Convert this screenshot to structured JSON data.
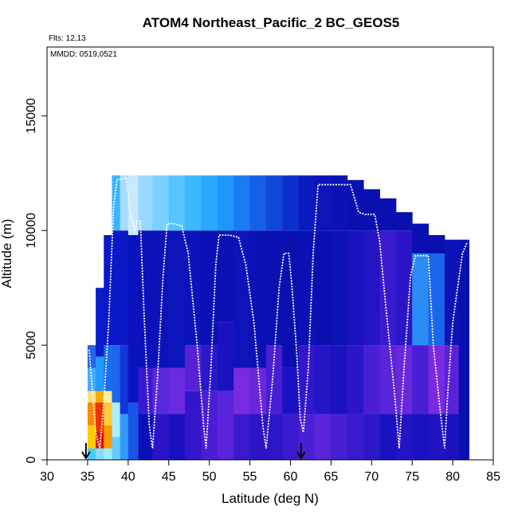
{
  "chart_data": {
    "type": "heatmap",
    "title": "ATOM4 Northeast_Pacific_2 BC_GEOS5",
    "annotations": {
      "flights": "Flts: 12,13",
      "dates": "MMDD: 0519,0521"
    },
    "xlabel": "Latitude (deg N)",
    "ylabel": "Altitude (m)",
    "xlim": [
      30,
      85
    ],
    "ylim": [
      0,
      18000
    ],
    "xticks": [
      30,
      35,
      40,
      45,
      50,
      55,
      60,
      65,
      70,
      75,
      80,
      85
    ],
    "yticks": [
      0,
      5000,
      10000,
      15000
    ],
    "colors": {
      "low": "#0000b4",
      "mid": "#22aaff",
      "violet": "#7a2ae0",
      "high": "#e00000"
    },
    "heatmap_columns": [
      {
        "lat": 35.5,
        "top": 5000,
        "cells": [
          [
            0,
            500,
            "#44ccff"
          ],
          [
            500,
            1500,
            "#ffcc00"
          ],
          [
            1500,
            2500,
            "#ff8800"
          ],
          [
            2500,
            3000,
            "#ffe080"
          ],
          [
            3000,
            4000,
            "#44aaff"
          ],
          [
            4000,
            5000,
            "#2266ee"
          ]
        ]
      },
      {
        "lat": 36.5,
        "top": 7500,
        "cells": [
          [
            0,
            500,
            "#88ddff"
          ],
          [
            500,
            1200,
            "#dd1100"
          ],
          [
            1200,
            2500,
            "#ee3300"
          ],
          [
            2500,
            3000,
            "#ffaa00"
          ],
          [
            3000,
            4500,
            "#2299ff"
          ],
          [
            4500,
            7500,
            "#0a1dcc"
          ]
        ]
      },
      {
        "lat": 37.5,
        "top": 9800,
        "cells": [
          [
            0,
            500,
            "#99eeff"
          ],
          [
            500,
            1500,
            "#ff9900"
          ],
          [
            1500,
            2500,
            "#ffcc33"
          ],
          [
            2500,
            3000,
            "#ffee99"
          ],
          [
            3000,
            5000,
            "#1b6ef0"
          ],
          [
            5000,
            9800,
            "#0a18c8"
          ]
        ]
      },
      {
        "lat": 38.5,
        "top": 12400,
        "cells": [
          [
            0,
            1000,
            "#66ccff"
          ],
          [
            1000,
            2500,
            "#aaeeff"
          ],
          [
            2500,
            5000,
            "#1a66ee"
          ],
          [
            5000,
            10000,
            "#0a1ac8"
          ],
          [
            10000,
            12400,
            "#3bb4ff"
          ]
        ]
      },
      {
        "lat": 39.5,
        "top": 12400,
        "cells": [
          [
            0,
            2000,
            "#3399ff"
          ],
          [
            2000,
            5000,
            "#1236d8"
          ],
          [
            5000,
            10000,
            "#0b1ac4"
          ],
          [
            10000,
            12400,
            "#a8dcff"
          ]
        ]
      },
      {
        "lat": 40.5,
        "top": 12400,
        "cells": [
          [
            0,
            2500,
            "#1a55e6"
          ],
          [
            2500,
            9800,
            "#0a14be"
          ],
          [
            9800,
            12400,
            "#c8eaff"
          ]
        ]
      },
      {
        "lat": 42.0,
        "top": 12400,
        "cells": [
          [
            0,
            2000,
            "#0a10b8"
          ],
          [
            2000,
            4000,
            "#3a1ad0"
          ],
          [
            4000,
            10000,
            "#0a12b8"
          ],
          [
            10000,
            12400,
            "#9ad8ff"
          ]
        ]
      },
      {
        "lat": 44.0,
        "top": 12400,
        "cells": [
          [
            0,
            2000,
            "#2a14c8"
          ],
          [
            2000,
            4000,
            "#5a28dc"
          ],
          [
            4000,
            10000,
            "#0a12b8"
          ],
          [
            10000,
            12400,
            "#7cd0ff"
          ]
        ]
      },
      {
        "lat": 46.0,
        "top": 12400,
        "cells": [
          [
            0,
            2000,
            "#1a10c0"
          ],
          [
            2000,
            4000,
            "#6a2ae0"
          ],
          [
            4000,
            10000,
            "#0c14bc"
          ],
          [
            10000,
            12400,
            "#55c4ff"
          ]
        ]
      },
      {
        "lat": 48.0,
        "top": 12400,
        "cells": [
          [
            0,
            3000,
            "#3316cc"
          ],
          [
            3000,
            5000,
            "#5522d6"
          ],
          [
            5000,
            10000,
            "#0a14bb"
          ],
          [
            10000,
            12400,
            "#3cb8ff"
          ]
        ]
      },
      {
        "lat": 50.0,
        "top": 12400,
        "cells": [
          [
            0,
            3000,
            "#4a1ed4"
          ],
          [
            3000,
            5000,
            "#2a18c8"
          ],
          [
            5000,
            10000,
            "#0a12b6"
          ],
          [
            10000,
            12400,
            "#2aa8ff"
          ]
        ]
      },
      {
        "lat": 52.0,
        "top": 12400,
        "cells": [
          [
            0,
            3000,
            "#5a24da"
          ],
          [
            3000,
            6000,
            "#1a12c0"
          ],
          [
            6000,
            10000,
            "#0a12b4"
          ],
          [
            10000,
            12400,
            "#1f96f8"
          ]
        ]
      },
      {
        "lat": 54.0,
        "top": 12400,
        "cells": [
          [
            0,
            2000,
            "#3a1acc"
          ],
          [
            2000,
            4000,
            "#7a2ae0"
          ],
          [
            4000,
            10000,
            "#0c14ba"
          ],
          [
            10000,
            12400,
            "#1a7cf0"
          ]
        ]
      },
      {
        "lat": 56.0,
        "top": 12400,
        "cells": [
          [
            0,
            2000,
            "#2a16c6"
          ],
          [
            2000,
            4000,
            "#6a26dc"
          ],
          [
            4000,
            10000,
            "#0a12b4"
          ],
          [
            10000,
            12400,
            "#1460e6"
          ]
        ]
      },
      {
        "lat": 58.0,
        "top": 12400,
        "cells": [
          [
            0,
            2000,
            "#2c16c8"
          ],
          [
            2000,
            5000,
            "#4a1ed2"
          ],
          [
            5000,
            10000,
            "#0a10b2"
          ],
          [
            10000,
            12400,
            "#1048da"
          ]
        ]
      },
      {
        "lat": 60.0,
        "top": 12400,
        "cells": [
          [
            0,
            2000,
            "#3a1ace"
          ],
          [
            2000,
            4000,
            "#1a12c2"
          ],
          [
            4000,
            10000,
            "#0a10b0"
          ],
          [
            10000,
            12400,
            "#0c30cc"
          ]
        ]
      },
      {
        "lat": 62.0,
        "top": 12400,
        "cells": [
          [
            0,
            2000,
            "#4a20d4"
          ],
          [
            2000,
            5000,
            "#3218cc"
          ],
          [
            5000,
            10000,
            "#0a12b6"
          ],
          [
            10000,
            12400,
            "#0a1cc0"
          ]
        ]
      },
      {
        "lat": 64.0,
        "top": 12400,
        "cells": [
          [
            0,
            2000,
            "#5a24d8"
          ],
          [
            2000,
            5000,
            "#2416c6"
          ],
          [
            5000,
            10000,
            "#0a10b0"
          ],
          [
            10000,
            12400,
            "#0a16ba"
          ]
        ]
      },
      {
        "lat": 66.0,
        "top": 12400,
        "cells": [
          [
            0,
            2000,
            "#4820d2"
          ],
          [
            2000,
            5000,
            "#1c12c0"
          ],
          [
            5000,
            10000,
            "#0c12b4"
          ],
          [
            10000,
            12400,
            "#0a12b4"
          ]
        ]
      },
      {
        "lat": 68.0,
        "top": 12200,
        "cells": [
          [
            0,
            2000,
            "#3a1ace"
          ],
          [
            2000,
            5000,
            "#2a16c8"
          ],
          [
            5000,
            10000,
            "#1a12be"
          ],
          [
            10000,
            12200,
            "#0a10b0"
          ]
        ]
      },
      {
        "lat": 70.0,
        "top": 11800,
        "cells": [
          [
            0,
            2000,
            "#2c18c8"
          ],
          [
            2000,
            5000,
            "#4a1ed2"
          ],
          [
            5000,
            10000,
            "#2414c4"
          ],
          [
            10000,
            11800,
            "#0a10b0"
          ]
        ]
      },
      {
        "lat": 72.0,
        "top": 11400,
        "cells": [
          [
            0,
            2000,
            "#1a12c0"
          ],
          [
            2000,
            5000,
            "#5a24d8"
          ],
          [
            5000,
            10000,
            "#3a1ace"
          ],
          [
            10000,
            11400,
            "#0a10b0"
          ]
        ]
      },
      {
        "lat": 74.0,
        "top": 10800,
        "cells": [
          [
            0,
            2000,
            "#2414c4"
          ],
          [
            2000,
            5000,
            "#6a28dc"
          ],
          [
            5000,
            10000,
            "#2a16c8"
          ],
          [
            10000,
            10800,
            "#0a10b0"
          ]
        ]
      },
      {
        "lat": 76.0,
        "top": 10300,
        "cells": [
          [
            0,
            2000,
            "#1a12c0"
          ],
          [
            2000,
            5000,
            "#4a1ed2"
          ],
          [
            5000,
            9000,
            "#2a8cf4"
          ],
          [
            9000,
            10300,
            "#0a10b0"
          ]
        ]
      },
      {
        "lat": 78.0,
        "top": 9800,
        "cells": [
          [
            0,
            2000,
            "#2014c2"
          ],
          [
            2000,
            5000,
            "#7a2ae0"
          ],
          [
            5000,
            9000,
            "#1a66ea"
          ],
          [
            9000,
            9800,
            "#0a10b0"
          ]
        ]
      },
      {
        "lat": 80.0,
        "top": 9600,
        "cells": [
          [
            0,
            2000,
            "#1a12c0"
          ],
          [
            2000,
            5000,
            "#5a22d6"
          ],
          [
            5000,
            9600,
            "#0c14b8"
          ]
        ]
      },
      {
        "lat": 81.5,
        "top": 9600,
        "cells": [
          [
            0,
            9600,
            "#0a10b0"
          ]
        ]
      }
    ],
    "flight_track": [
      [
        35.2,
        4800
      ],
      [
        35.6,
        3000
      ],
      [
        36.0,
        1200
      ],
      [
        36.5,
        500
      ],
      [
        37.0,
        2500
      ],
      [
        37.6,
        6000
      ],
      [
        38.2,
        11000
      ],
      [
        38.6,
        12200
      ],
      [
        39.8,
        12300
      ],
      [
        40.2,
        10800
      ],
      [
        40.8,
        10000
      ],
      [
        41.1,
        10400
      ],
      [
        41.5,
        10400
      ],
      [
        42.0,
        6000
      ],
      [
        42.6,
        1500
      ],
      [
        43.0,
        500
      ],
      [
        43.6,
        3500
      ],
      [
        44.3,
        8000
      ],
      [
        44.8,
        10300
      ],
      [
        45.6,
        10300
      ],
      [
        46.6,
        10200
      ],
      [
        47.4,
        9000
      ],
      [
        48.5,
        5000
      ],
      [
        49.3,
        1500
      ],
      [
        49.6,
        500
      ],
      [
        50.2,
        4000
      ],
      [
        50.8,
        8500
      ],
      [
        51.2,
        9800
      ],
      [
        52.5,
        9800
      ],
      [
        53.6,
        9700
      ],
      [
        54.5,
        8500
      ],
      [
        55.5,
        6000
      ],
      [
        56.6,
        1500
      ],
      [
        57.0,
        500
      ],
      [
        57.8,
        3500
      ],
      [
        58.6,
        7500
      ],
      [
        59.2,
        9000
      ],
      [
        59.8,
        9000
      ],
      [
        60.2,
        7500
      ],
      [
        60.8,
        4500
      ],
      [
        61.2,
        1800
      ],
      [
        61.6,
        1200
      ],
      [
        62.2,
        4000
      ],
      [
        62.8,
        9000
      ],
      [
        63.4,
        12000
      ],
      [
        65.0,
        12000
      ],
      [
        67.4,
        12000
      ],
      [
        68.4,
        10800
      ],
      [
        69.2,
        10700
      ],
      [
        70.4,
        10700
      ],
      [
        71.0,
        9500
      ],
      [
        71.8,
        6500
      ],
      [
        72.8,
        3000
      ],
      [
        73.4,
        500
      ],
      [
        74.0,
        4000
      ],
      [
        74.8,
        8000
      ],
      [
        75.4,
        8900
      ],
      [
        77.0,
        8900
      ],
      [
        77.6,
        5000
      ],
      [
        78.5,
        2000
      ],
      [
        79.0,
        500
      ],
      [
        79.4,
        3000
      ],
      [
        80.0,
        6000
      ],
      [
        81.2,
        9000
      ],
      [
        81.8,
        9500
      ]
    ],
    "markers": [
      34.8,
      61.3
    ]
  }
}
